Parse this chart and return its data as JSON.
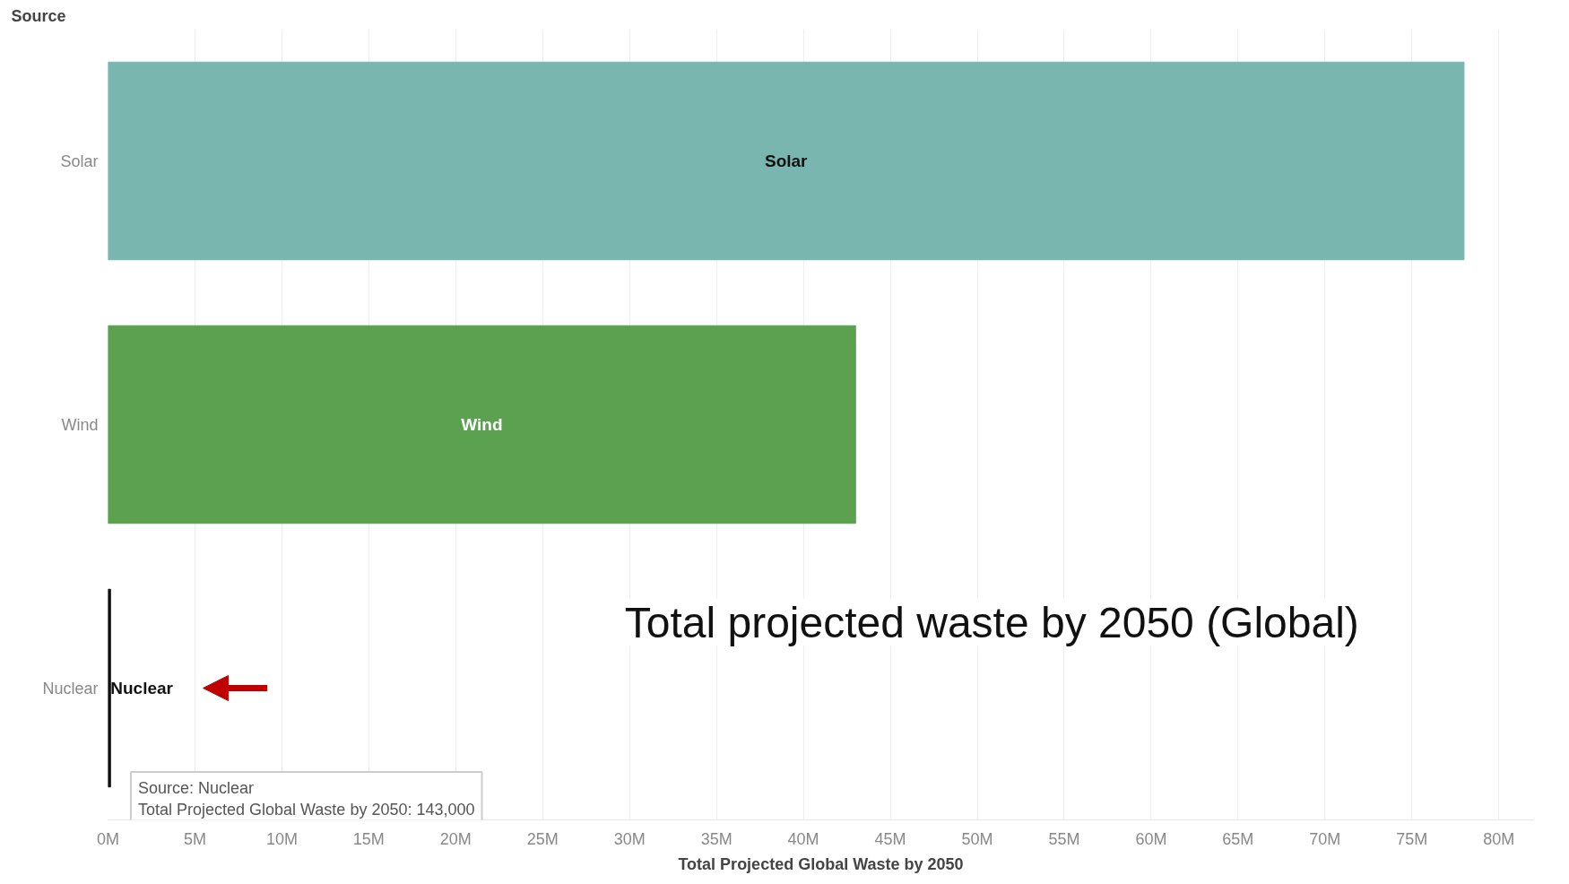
{
  "chart_data": {
    "type": "bar",
    "orientation": "horizontal",
    "title": "Total projected waste by 2050 (Global)",
    "ylabel": "Source",
    "xlabel": "Total Projected Global Waste by 2050",
    "categories": [
      "Solar",
      "Wind",
      "Nuclear"
    ],
    "values": [
      78000000,
      43000000,
      143000
    ],
    "colors": [
      "#79b6b0",
      "#5ba150",
      "#111111"
    ],
    "xlim": [
      0,
      82000000
    ],
    "xticks": [
      {
        "value": 0,
        "label": "0M"
      },
      {
        "value": 5000000,
        "label": "5M"
      },
      {
        "value": 10000000,
        "label": "10M"
      },
      {
        "value": 15000000,
        "label": "15M"
      },
      {
        "value": 20000000,
        "label": "20M"
      },
      {
        "value": 25000000,
        "label": "25M"
      },
      {
        "value": 30000000,
        "label": "30M"
      },
      {
        "value": 35000000,
        "label": "35M"
      },
      {
        "value": 40000000,
        "label": "40M"
      },
      {
        "value": 45000000,
        "label": "45M"
      },
      {
        "value": 50000000,
        "label": "50M"
      },
      {
        "value": 55000000,
        "label": "55M"
      },
      {
        "value": 60000000,
        "label": "60M"
      },
      {
        "value": 65000000,
        "label": "65M"
      },
      {
        "value": 70000000,
        "label": "70M"
      },
      {
        "value": 75000000,
        "label": "75M"
      },
      {
        "value": 80000000,
        "label": "80M"
      }
    ],
    "grid": "x",
    "annotations": [
      "Source: Nuclear",
      "Total Projected Global Waste by 2050: 143,000"
    ]
  }
}
